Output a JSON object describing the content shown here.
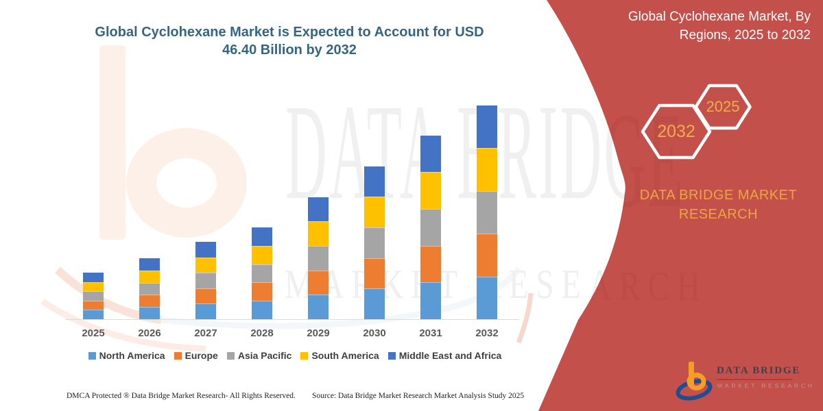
{
  "title": {
    "line1": "Global Cyclohexane Market is Expected to Account for USD",
    "line2": "46.40 Billion by 2032"
  },
  "right_panel": {
    "heading_line1": "Global Cyclohexane Market, By",
    "heading_line2": "Regions, 2025 to 2032",
    "hexagons": [
      {
        "label": "2032"
      },
      {
        "label": "2025"
      }
    ],
    "brand_line1": "DATA BRIDGE MARKET",
    "brand_line2": "RESEARCH",
    "background_color": "#c3504a",
    "accent_gold": "#e9a742"
  },
  "watermark": {
    "line1": "DATA BRIDGE",
    "line2": "MARKET RESEARCH"
  },
  "logo": {
    "line1": "DATA BRIDGE",
    "line2": "MARKET RESEARCH"
  },
  "footer": {
    "left": "DMCA Protected ® Data Bridge Market Research-  All Rights Reserved.",
    "source": "Source: Data Bridge Market Research  Market Analysis Study 2025"
  },
  "chart_data": {
    "type": "bar",
    "stacked": true,
    "unit": "USD Billion",
    "title": "Global Cyclohexane Market, By Regions, 2025 to 2032",
    "categories": [
      "2025",
      "2026",
      "2027",
      "2028",
      "2029",
      "2030",
      "2031",
      "2032"
    ],
    "series": [
      {
        "name": "North America",
        "color": "#5B9BD5",
        "values": [
          2.02,
          2.64,
          3.36,
          3.98,
          5.3,
          6.64,
          7.98,
          9.28
        ]
      },
      {
        "name": "Europe",
        "color": "#ED7D31",
        "values": [
          2.02,
          2.64,
          3.36,
          3.98,
          5.3,
          6.64,
          7.98,
          9.28
        ]
      },
      {
        "name": "Asia Pacific",
        "color": "#A5A5A5",
        "values": [
          2.02,
          2.64,
          3.36,
          3.98,
          5.3,
          6.64,
          7.98,
          9.28
        ]
      },
      {
        "name": "South America",
        "color": "#FFC000",
        "values": [
          2.02,
          2.64,
          3.36,
          3.98,
          5.3,
          6.64,
          7.98,
          9.28
        ]
      },
      {
        "name": "Middle East and Africa",
        "color": "#4472C4",
        "values": [
          2.02,
          2.64,
          3.36,
          3.98,
          5.3,
          6.64,
          7.98,
          9.28
        ]
      }
    ],
    "totals": [
      10.1,
      13.2,
      16.8,
      19.9,
      26.5,
      33.2,
      39.9,
      46.4
    ],
    "ylim": [
      0,
      50
    ],
    "gridlines": false,
    "legend_position": "bottom"
  }
}
